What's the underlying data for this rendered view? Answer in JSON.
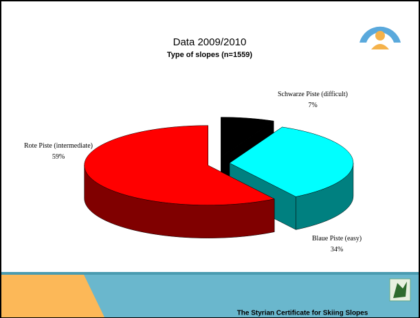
{
  "chart_data": {
    "type": "pie3d",
    "title": "Data 2009/2010",
    "subtitle": "Type of slopes (n=1559)",
    "categories": [
      "Schwarze Piste (difficult)",
      "Blaue Piste (easy)",
      "Rote Piste (intermediate)"
    ],
    "values": [
      7,
      34,
      59
    ],
    "value_labels": [
      "7%",
      "34%",
      "59%"
    ],
    "colors": [
      "#000000",
      "#00ffff",
      "#ff0000"
    ],
    "side_colors": [
      "#000000",
      "#008080",
      "#800000"
    ]
  },
  "footer": {
    "text": "The Styrian Certificate for Skiing Slopes"
  }
}
